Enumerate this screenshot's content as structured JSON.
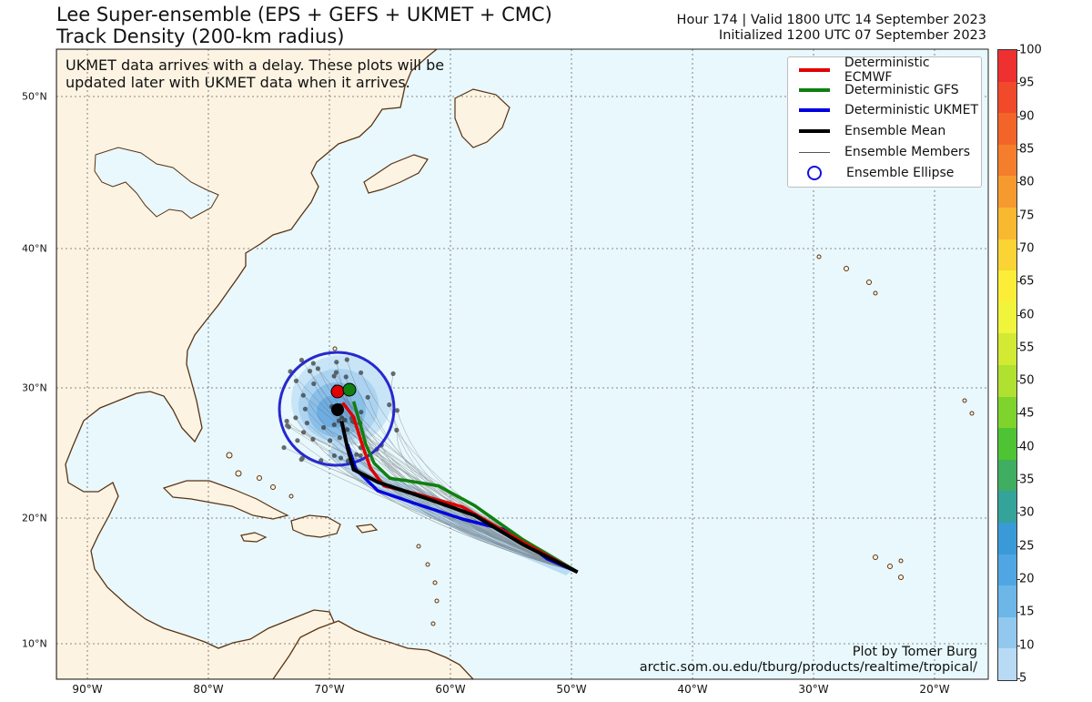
{
  "header": {
    "title_line1": "Lee Super-ensemble (EPS + GEFS + UKMET + CMC)",
    "title_line2": "Track Density (200-km radius)",
    "valid_line": "Hour 174 | Valid 1800 UTC 14 September 2023",
    "init_line": "Initialized 1200 UTC 07 September 2023"
  },
  "note": {
    "line1": "UKMET data arrives with a delay. These plots will be",
    "line2": "updated later with UKMET data when it arrives."
  },
  "legend": {
    "items": [
      {
        "label": "Deterministic ECMWF",
        "color": "#e00000"
      },
      {
        "label": "Deterministic GFS",
        "color": "#108010"
      },
      {
        "label": "Deterministic UKMET",
        "color": "#0000e0"
      },
      {
        "label": "Ensemble Mean",
        "color": "#000000"
      },
      {
        "label": "Ensemble Members",
        "color": "#555555"
      },
      {
        "label": "Ensemble Ellipse",
        "color": "#1010e0"
      }
    ]
  },
  "credit": {
    "line1": "Plot by Tomer Burg",
    "line2": "arctic.som.ou.edu/tburg/products/realtime/tropical/"
  },
  "axes": {
    "lat_labels": [
      "50°N",
      "40°N",
      "30°N",
      "20°N",
      "10°N"
    ],
    "lon_labels": [
      "90°W",
      "80°W",
      "70°W",
      "60°W",
      "50°W",
      "40°W",
      "30°W",
      "20°W"
    ]
  },
  "colorbar": {
    "ticks": [
      "100",
      "95",
      "90",
      "85",
      "80",
      "75",
      "70",
      "65",
      "60",
      "55",
      "50",
      "45",
      "40",
      "35",
      "30",
      "25",
      "20",
      "15",
      "10",
      "5"
    ],
    "colors": [
      "#ee3030",
      "#f04a2a",
      "#f26428",
      "#f47e2c",
      "#f69a30",
      "#f8b830",
      "#fad434",
      "#fcee38",
      "#f0f43a",
      "#d2ea34",
      "#b0e030",
      "#7ed42c",
      "#4ec434",
      "#3fae60",
      "#34a39a",
      "#3a9ad8",
      "#4fa6e2",
      "#6cb6e8",
      "#92c8ee",
      "#b8daf4"
    ]
  },
  "map_colors": {
    "ocean": "#e8f8fc",
    "land": "#fdf3e2",
    "coast": "#5a3212"
  },
  "chart_data": {
    "type": "map-tracks",
    "ellipse_center": {
      "lon": -69.5,
      "lat": 28.7
    },
    "deterministic_ecmwf": [
      [
        -49.5,
        16.1
      ],
      [
        -54,
        18.6
      ],
      [
        -59,
        21.5
      ],
      [
        -63,
        22.6
      ],
      [
        -65.5,
        23.2
      ],
      [
        -66.6,
        24.6
      ],
      [
        -67.3,
        26.5
      ],
      [
        -68,
        28.6
      ],
      [
        -68.9,
        29.7
      ]
    ],
    "deterministic_gfs": [
      [
        -49.5,
        16.1
      ],
      [
        -54,
        18.8
      ],
      [
        -58,
        21.6
      ],
      [
        -61,
        23.2
      ],
      [
        -63.5,
        23.6
      ],
      [
        -65,
        23.8
      ],
      [
        -66.3,
        25
      ],
      [
        -67,
        26.5
      ],
      [
        -67.5,
        28.2
      ],
      [
        -68,
        29.8
      ]
    ],
    "deterministic_ukmet": [
      [
        -49.5,
        16.1
      ],
      [
        -52,
        17.2
      ],
      [
        -55,
        19.5
      ],
      [
        -59,
        20.5
      ],
      [
        -63,
        21.8
      ],
      [
        -66,
        22.8
      ],
      [
        -67.8,
        24.5
      ],
      [
        -68.5,
        26.5
      ]
    ],
    "ensemble_mean": [
      [
        -49.5,
        16.1
      ],
      [
        -54,
        18.4
      ],
      [
        -58,
        20.8
      ],
      [
        -62,
        22.2
      ],
      [
        -66,
        23.5
      ],
      [
        -68,
        24.5
      ],
      [
        -68.5,
        26.2
      ],
      [
        -69,
        28.3
      ]
    ]
  }
}
